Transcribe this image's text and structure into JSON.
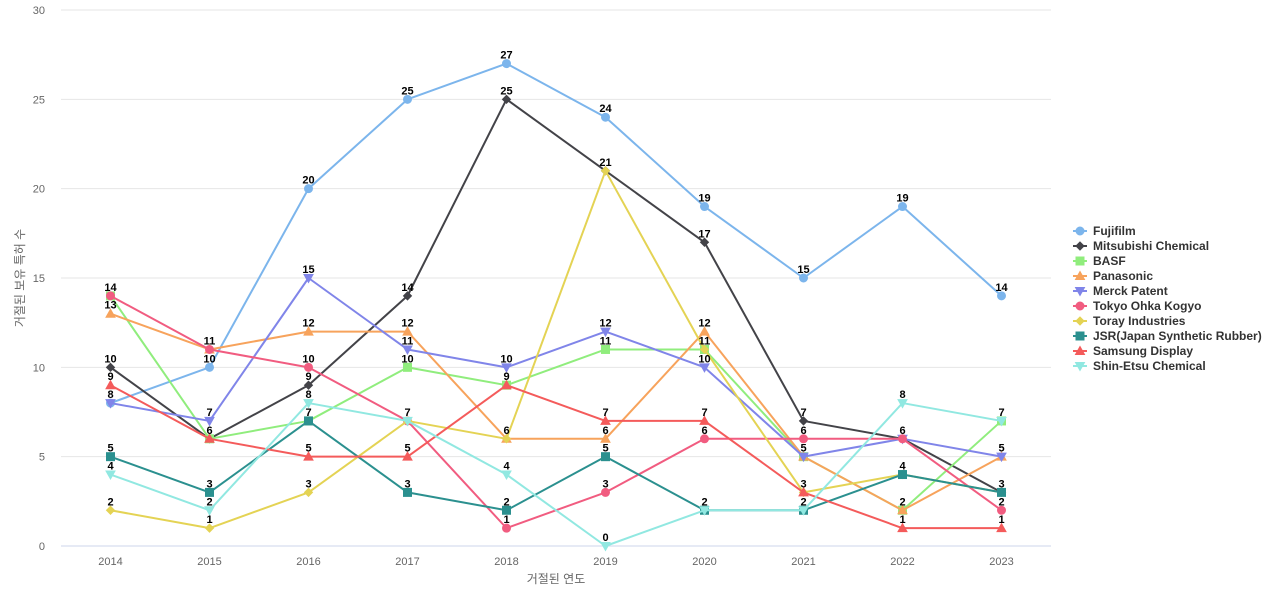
{
  "chart_data": {
    "type": "line",
    "title": "",
    "xlabel": "거절된 연도",
    "ylabel": "거절된 보유 특허 수",
    "x": [
      "2014",
      "2015",
      "2016",
      "2017",
      "2018",
      "2019",
      "2020",
      "2021",
      "2022",
      "2023"
    ],
    "ylim": [
      0,
      30
    ],
    "yticks": [
      0,
      5,
      10,
      15,
      20,
      25,
      30
    ],
    "grid": true,
    "legend_position": "right",
    "series": [
      {
        "name": "Fujifilm",
        "color": "#7cb5ec",
        "marker": "circle",
        "values": [
          8,
          10,
          20,
          25,
          27,
          24,
          19,
          15,
          19,
          14
        ]
      },
      {
        "name": "Mitsubishi Chemical",
        "color": "#434348",
        "marker": "diamond",
        "values": [
          10,
          6,
          9,
          14,
          25,
          21,
          17,
          7,
          6,
          3
        ]
      },
      {
        "name": "BASF",
        "color": "#90ed7d",
        "marker": "square",
        "values": [
          14,
          6,
          7,
          10,
          9,
          11,
          11,
          5,
          2,
          7
        ]
      },
      {
        "name": "Panasonic",
        "color": "#f7a35c",
        "marker": "triangle",
        "values": [
          13,
          11,
          12,
          12,
          6,
          6,
          12,
          5,
          2,
          5
        ]
      },
      {
        "name": "Merck Patent",
        "color": "#8085e9",
        "marker": "triangle-down",
        "values": [
          8,
          7,
          15,
          11,
          10,
          12,
          10,
          5,
          6,
          5
        ]
      },
      {
        "name": "Tokyo Ohka Kogyo",
        "color": "#f15c80",
        "marker": "circle",
        "values": [
          14,
          11,
          10,
          7,
          1,
          3,
          6,
          6,
          6,
          2
        ]
      },
      {
        "name": "Toray Industries",
        "color": "#e4d354",
        "marker": "diamond",
        "values": [
          2,
          1,
          3,
          7,
          6,
          21,
          11,
          3,
          4,
          3
        ]
      },
      {
        "name": "JSR(Japan Synthetic Rubber)",
        "color": "#2b908f",
        "marker": "square",
        "values": [
          5,
          3,
          7,
          3,
          2,
          5,
          2,
          2,
          4,
          3
        ]
      },
      {
        "name": "Samsung Display",
        "color": "#f45b5b",
        "marker": "triangle",
        "values": [
          9,
          6,
          5,
          5,
          9,
          7,
          7,
          3,
          1,
          1
        ]
      },
      {
        "name": "Shin-Etsu Chemical",
        "color": "#91e8e1",
        "marker": "triangle-down",
        "values": [
          4,
          2,
          8,
          7,
          4,
          0,
          2,
          2,
          8,
          7
        ]
      }
    ],
    "labels": [
      {
        "x": "2014",
        "text": "14"
      },
      {
        "x": "2014",
        "text": "13"
      },
      {
        "x": "2014",
        "text": "10"
      },
      {
        "x": "2014",
        "text": "9"
      },
      {
        "x": "2014",
        "text": "8"
      },
      {
        "x": "2014",
        "text": "5"
      },
      {
        "x": "2014",
        "text": "4"
      },
      {
        "x": "2014",
        "text": "2"
      },
      {
        "x": "2015",
        "text": "11"
      },
      {
        "x": "2015",
        "text": "10"
      },
      {
        "x": "2015",
        "text": "7"
      },
      {
        "x": "2015",
        "text": "6"
      },
      {
        "x": "2015",
        "text": "3"
      },
      {
        "x": "2015",
        "text": "2"
      },
      {
        "x": "2015",
        "text": "1"
      },
      {
        "x": "2016",
        "text": "20"
      },
      {
        "x": "2016",
        "text": "15"
      },
      {
        "x": "2016",
        "text": "12"
      },
      {
        "x": "2016",
        "text": "10"
      },
      {
        "x": "2016",
        "text": "9"
      },
      {
        "x": "2016",
        "text": "8"
      },
      {
        "x": "2016",
        "text": "7"
      },
      {
        "x": "2016",
        "text": "5"
      },
      {
        "x": "2016",
        "text": "3"
      },
      {
        "x": "2017",
        "text": "25"
      },
      {
        "x": "2017",
        "text": "14"
      },
      {
        "x": "2017",
        "text": "12"
      },
      {
        "x": "2017",
        "text": "11"
      },
      {
        "x": "2017",
        "text": "10"
      },
      {
        "x": "2017",
        "text": "7"
      },
      {
        "x": "2017",
        "text": "5"
      },
      {
        "x": "2017",
        "text": "3"
      },
      {
        "x": "2018",
        "text": "27"
      },
      {
        "x": "2018",
        "text": "25"
      },
      {
        "x": "2018",
        "text": "10"
      },
      {
        "x": "2018",
        "text": "9"
      },
      {
        "x": "2018",
        "text": "6"
      },
      {
        "x": "2018",
        "text": "4"
      },
      {
        "x": "2018",
        "text": "2"
      },
      {
        "x": "2018",
        "text": "1"
      },
      {
        "x": "2019",
        "text": "24"
      },
      {
        "x": "2019",
        "text": "21"
      },
      {
        "x": "2019",
        "text": "12"
      },
      {
        "x": "2019",
        "text": "11"
      },
      {
        "x": "2019",
        "text": "7"
      },
      {
        "x": "2019",
        "text": "6"
      },
      {
        "x": "2019",
        "text": "5"
      },
      {
        "x": "2019",
        "text": "3"
      },
      {
        "x": "2019",
        "text": "0"
      },
      {
        "x": "2020",
        "text": "19"
      },
      {
        "x": "2020",
        "text": "17"
      },
      {
        "x": "2020",
        "text": "12"
      },
      {
        "x": "2020",
        "text": "11"
      },
      {
        "x": "2020",
        "text": "10"
      },
      {
        "x": "2020",
        "text": "7"
      },
      {
        "x": "2020",
        "text": "6"
      },
      {
        "x": "2020",
        "text": "2"
      },
      {
        "x": "2021",
        "text": "15"
      },
      {
        "x": "2021",
        "text": "7"
      },
      {
        "x": "2021",
        "text": "6"
      },
      {
        "x": "2021",
        "text": "5"
      },
      {
        "x": "2021",
        "text": "3"
      },
      {
        "x": "2021",
        "text": "2"
      },
      {
        "x": "2022",
        "text": "19"
      },
      {
        "x": "2022",
        "text": "8"
      },
      {
        "x": "2022",
        "text": "6"
      },
      {
        "x": "2022",
        "text": "4"
      },
      {
        "x": "2022",
        "text": "2"
      },
      {
        "x": "2022",
        "text": "1"
      },
      {
        "x": "2023",
        "text": "14"
      },
      {
        "x": "2023",
        "text": "7"
      },
      {
        "x": "2023",
        "text": "5"
      },
      {
        "x": "2023",
        "text": "3"
      },
      {
        "x": "2023",
        "text": "2"
      },
      {
        "x": "2023",
        "text": "1"
      }
    ]
  }
}
